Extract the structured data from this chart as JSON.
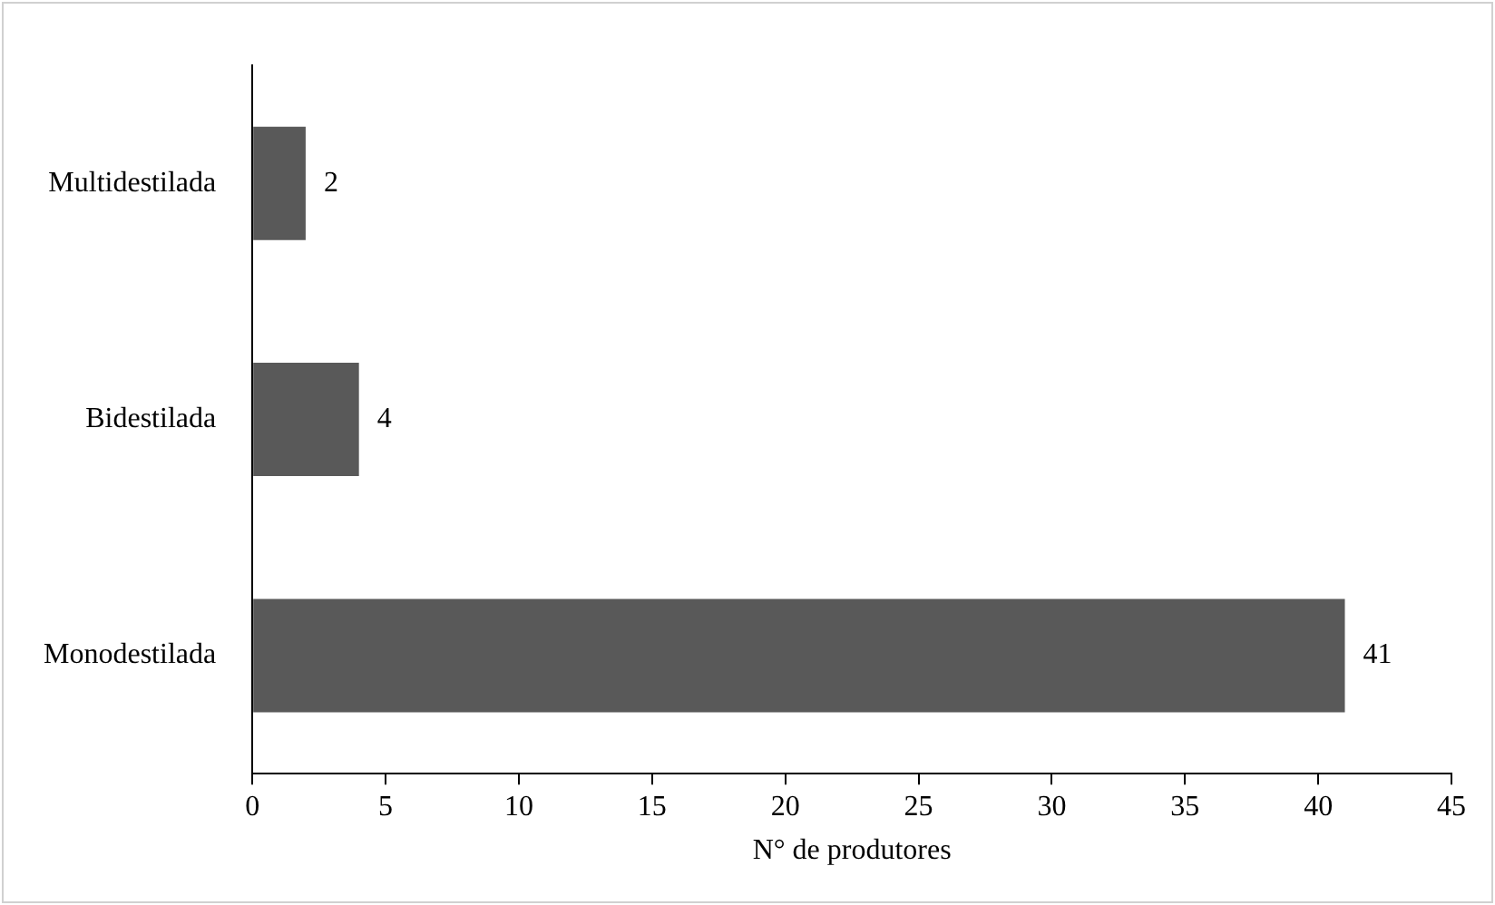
{
  "chart_data": {
    "type": "bar",
    "orientation": "horizontal",
    "xlabel": "N° de produtores",
    "categories": [
      "Multidestilada",
      "Bidestilada",
      "Monodestilada"
    ],
    "values": [
      2,
      4,
      41
    ],
    "color": "#595959",
    "xlim": [
      0,
      45
    ],
    "xticks": [
      0,
      5,
      10,
      15,
      20,
      25,
      30,
      35,
      40,
      45
    ],
    "grid": false,
    "legend": false,
    "data_labels": true
  }
}
